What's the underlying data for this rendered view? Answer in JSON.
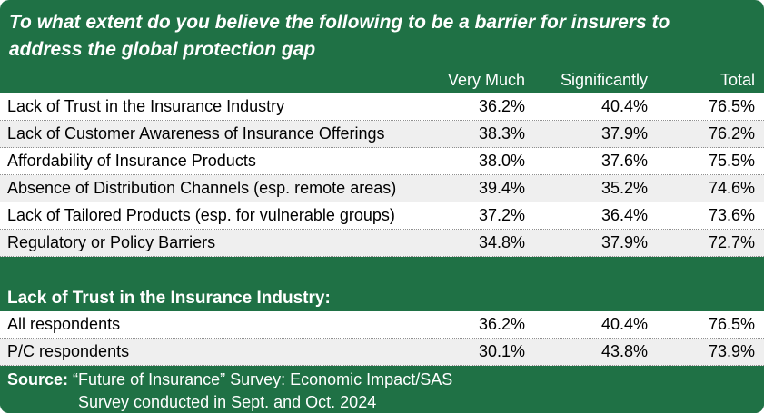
{
  "title": "To what extent do you believe the following to be a barrier for insurers to address the global protection gap",
  "columns": [
    "Very Much",
    "Significantly",
    "Total"
  ],
  "rows": [
    {
      "label": "Lack of Trust in the Insurance Industry",
      "values": [
        "36.2%",
        "40.4%",
        "76.5%"
      ]
    },
    {
      "label": "Lack of Customer Awareness of Insurance Offerings",
      "values": [
        "38.3%",
        "37.9%",
        "76.2%"
      ]
    },
    {
      "label": "Affordability of Insurance Products",
      "values": [
        "38.0%",
        "37.6%",
        "75.5%"
      ]
    },
    {
      "label": "Absence of Distribution Channels (esp. remote areas)",
      "values": [
        "39.4%",
        "35.2%",
        "74.6%"
      ]
    },
    {
      "label": "Lack of Tailored Products (esp. for vulnerable groups)",
      "values": [
        "37.2%",
        "36.4%",
        "73.6%"
      ]
    },
    {
      "label": "Regulatory or Policy Barriers",
      "values": [
        "34.8%",
        "37.9%",
        "72.7%"
      ]
    }
  ],
  "section": {
    "header": "Lack of Trust in the Insurance Industry:",
    "rows": [
      {
        "label": "All respondents",
        "values": [
          "36.2%",
          "40.4%",
          "76.5%"
        ]
      },
      {
        "label": "P/C respondents",
        "values": [
          "30.1%",
          "43.8%",
          "73.9%"
        ]
      }
    ]
  },
  "footer": {
    "source_label": "Source:",
    "source_text": "“Future of Insurance” Survey: Economic Impact/SAS",
    "line2": "Survey conducted in Sept. and Oct. 2024"
  },
  "colors": {
    "green": "#1f7145",
    "row_alt": "#efefef",
    "text": "#000000",
    "white": "#ffffff"
  },
  "chart_data": {
    "type": "table",
    "title": "To what extent do you believe the following to be a barrier for insurers to address the global protection gap",
    "columns": [
      "Very Much",
      "Significantly",
      "Total"
    ],
    "rows": [
      {
        "label": "Lack of Trust in the Insurance Industry",
        "very_much": 36.2,
        "significantly": 40.4,
        "total": 76.5
      },
      {
        "label": "Lack of Customer Awareness of Insurance Offerings",
        "very_much": 38.3,
        "significantly": 37.9,
        "total": 76.2
      },
      {
        "label": "Affordability of Insurance Products",
        "very_much": 38.0,
        "significantly": 37.6,
        "total": 75.5
      },
      {
        "label": "Absence of Distribution Channels (esp. remote areas)",
        "very_much": 39.4,
        "significantly": 35.2,
        "total": 74.6
      },
      {
        "label": "Lack of Tailored Products (esp. for vulnerable groups)",
        "very_much": 37.2,
        "significantly": 36.4,
        "total": 73.6
      },
      {
        "label": "Regulatory or Policy Barriers",
        "very_much": 34.8,
        "significantly": 37.9,
        "total": 72.7
      }
    ],
    "section": {
      "header": "Lack of Trust in the Insurance Industry:",
      "rows": [
        {
          "label": "All respondents",
          "very_much": 36.2,
          "significantly": 40.4,
          "total": 76.5
        },
        {
          "label": "P/C respondents",
          "very_much": 30.1,
          "significantly": 43.8,
          "total": 73.9
        }
      ]
    },
    "source": "“Future of Insurance” Survey: Economic Impact/SAS; Survey conducted in Sept. and Oct. 2024"
  }
}
